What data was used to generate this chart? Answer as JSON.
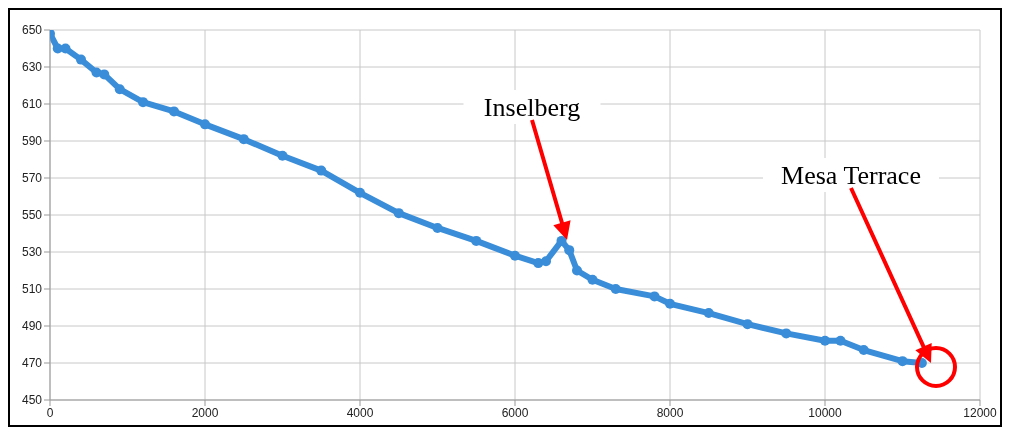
{
  "chart_data": {
    "type": "line",
    "marker": "circle",
    "grid": true,
    "xlim": [
      0,
      12000
    ],
    "xticks": [
      0,
      2000,
      4000,
      6000,
      8000,
      10000,
      12000
    ],
    "ylim": [
      450,
      650
    ],
    "yticks": [
      450,
      470,
      490,
      510,
      530,
      550,
      570,
      590,
      610,
      630,
      650
    ],
    "x": [
      0,
      100,
      200,
      400,
      600,
      700,
      900,
      1200,
      1600,
      2000,
      2500,
      3000,
      3500,
      4000,
      4500,
      5000,
      5500,
      6000,
      6300,
      6400,
      6600,
      6700,
      6800,
      7000,
      7300,
      7800,
      8000,
      8500,
      9000,
      9500,
      10000,
      10200,
      10500,
      11000,
      11250
    ],
    "series": [
      {
        "color": "#3a8dd8",
        "values": [
          648,
          640,
          640,
          634,
          627,
          626,
          618,
          611,
          606,
          599,
          591,
          582,
          574,
          562,
          551,
          543,
          536,
          528,
          524,
          525,
          536,
          531,
          520,
          515,
          510,
          506,
          502,
          497,
          491,
          486,
          482,
          482,
          477,
          471,
          470
        ]
      }
    ],
    "annotations": [
      "Inselberg",
      "Mesa Terrace"
    ]
  }
}
